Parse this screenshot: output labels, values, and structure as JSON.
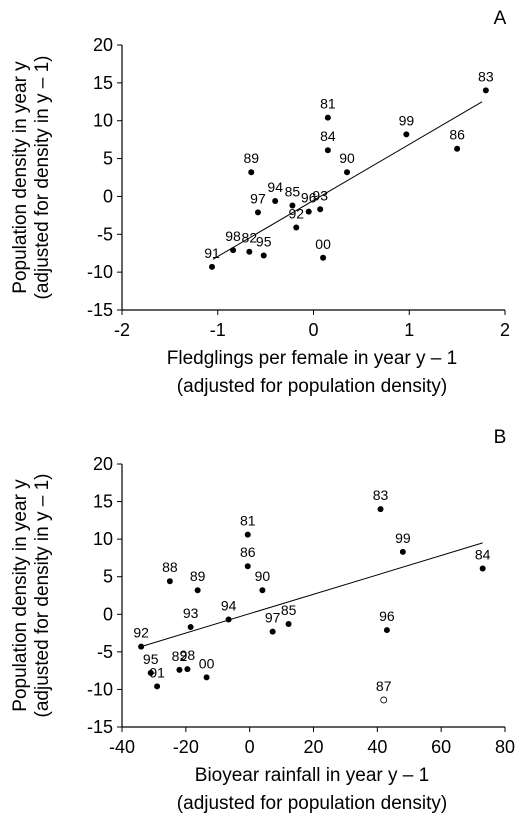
{
  "chart_data": [
    {
      "type": "scatter",
      "panel": "A",
      "x_label": [
        "Fledglings per female in year y – 1",
        "(adjusted for population density)"
      ],
      "y_label": [
        "Population density in year y",
        "(adjusted for density in y – 1)"
      ],
      "xlim": [
        -2,
        2
      ],
      "xticks": [
        -2,
        -1,
        0,
        1,
        2
      ],
      "ylim": [
        -15,
        20
      ],
      "yticks": [
        -15,
        -10,
        -5,
        0,
        5,
        10,
        15,
        20
      ],
      "series": [
        {
          "color": "#000000",
          "marker": "filled",
          "labels": [
            "83",
            "81",
            "84",
            "99",
            "90",
            "86",
            "89",
            "94",
            "97",
            "85",
            "96",
            "93",
            "92",
            "95",
            "82",
            "98",
            "91",
            "00"
          ],
          "x": [
            1.8,
            0.15,
            0.15,
            0.97,
            0.35,
            1.5,
            -0.65,
            -0.4,
            -0.58,
            -0.22,
            -0.05,
            0.07,
            -0.18,
            -0.52,
            -0.67,
            -0.84,
            -1.06,
            0.1
          ],
          "values": [
            14,
            10.4,
            6.1,
            8.2,
            3.2,
            6.3,
            3.2,
            -0.6,
            -2.1,
            -1.2,
            -2.0,
            -1.7,
            -4.1,
            -7.8,
            -7.3,
            -7.1,
            -9.3,
            -8.1
          ]
        }
      ],
      "trendline": {
        "x": [
          -1.05,
          1.76
        ],
        "values": [
          -8.3,
          12.5
        ]
      }
    },
    {
      "type": "scatter",
      "panel": "B",
      "x_label": [
        "Bioyear rainfall in year y – 1",
        "(adjusted for population density)"
      ],
      "y_label": [
        "Population density in year y",
        "(adjusted for density in y – 1)"
      ],
      "xlim": [
        -40,
        80
      ],
      "xticks": [
        -40,
        -20,
        0,
        20,
        40,
        60,
        80
      ],
      "ylim": [
        -15,
        20
      ],
      "yticks": [
        -15,
        -10,
        -5,
        0,
        5,
        10,
        15,
        20
      ],
      "series": [
        {
          "color": "#000000",
          "marker": "filled",
          "labels": [
            "83",
            "99",
            "84",
            "81",
            "86",
            "90",
            "88",
            "89",
            "93",
            "94",
            "97",
            "85",
            "96",
            "92",
            "95",
            "91",
            "82",
            "98",
            "00"
          ],
          "x": [
            41,
            48,
            73,
            -0.6,
            -0.6,
            4,
            -25,
            -16.3,
            -18.5,
            -6.6,
            7.2,
            12.2,
            43,
            -34,
            -31,
            -29,
            -22,
            -19.5,
            -13.5
          ],
          "values": [
            14,
            8.3,
            6.1,
            10.6,
            6.4,
            3.2,
            4.4,
            3.2,
            -1.7,
            -0.7,
            -2.3,
            -1.3,
            -2.1,
            -4.3,
            -7.8,
            -9.6,
            -7.4,
            -7.3,
            -8.4
          ]
        },
        {
          "color": "#000000",
          "marker": "open",
          "labels": [
            "87"
          ],
          "x": [
            42
          ],
          "values": [
            -11.4
          ]
        }
      ],
      "trendline": {
        "x": [
          -34,
          73
        ],
        "values": [
          -4.3,
          9.5
        ]
      }
    }
  ]
}
